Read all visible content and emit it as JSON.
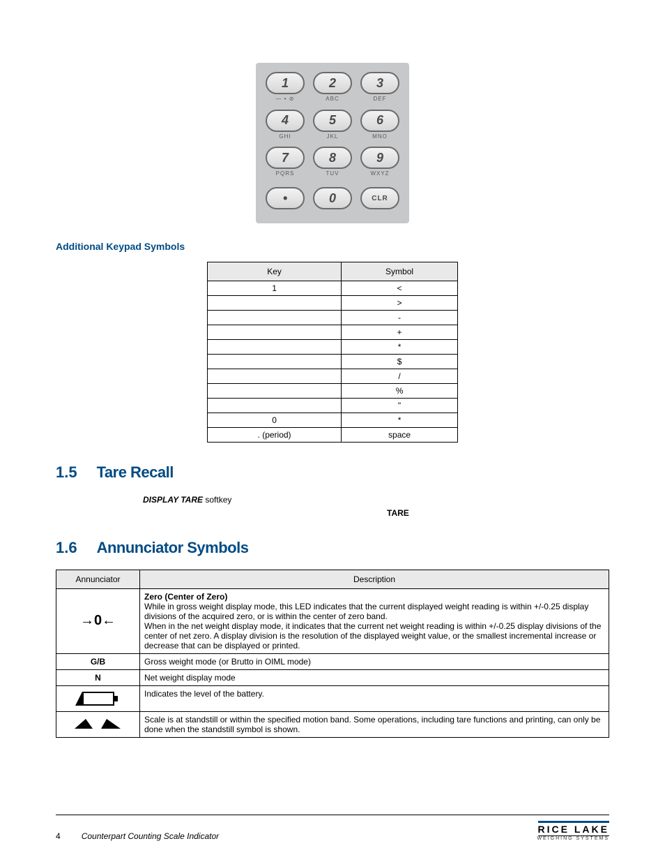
{
  "keypad": {
    "bg_color": "#c7c8c9",
    "keys": [
      {
        "main": "1",
        "sub": "— • ⊘"
      },
      {
        "main": "2",
        "sub": "ABC"
      },
      {
        "main": "3",
        "sub": "DEF"
      },
      {
        "main": "4",
        "sub": "GHI"
      },
      {
        "main": "5",
        "sub": "JKL"
      },
      {
        "main": "6",
        "sub": "MNO"
      },
      {
        "main": "7",
        "sub": "PQRS"
      },
      {
        "main": "8",
        "sub": "TUV"
      },
      {
        "main": "9",
        "sub": "WXYZ"
      },
      {
        "main": "•",
        "sub": ""
      },
      {
        "main": "0",
        "sub": ""
      },
      {
        "main": "CLR",
        "sub": ""
      }
    ]
  },
  "section_sub": "Additional Keypad Symbols",
  "sym_table": {
    "headers": [
      "Key",
      "Symbol"
    ],
    "rows": [
      [
        "1",
        "<"
      ],
      [
        "",
        ">"
      ],
      [
        "",
        "-"
      ],
      [
        "",
        "+"
      ],
      [
        "",
        "*"
      ],
      [
        "",
        "$"
      ],
      [
        "",
        "/"
      ],
      [
        "",
        "%"
      ],
      [
        "",
        "\""
      ],
      [
        "0",
        "*"
      ],
      [
        ". (period)",
        "space"
      ]
    ]
  },
  "sec15": {
    "num": "1.5",
    "title": "Tare Recall",
    "line1_a": "DISPLAY TARE",
    "line1_b": " softkey",
    "line2_a": "TARE"
  },
  "sec16": {
    "num": "1.6",
    "title": "Annunciator Symbols",
    "headers": [
      "Annunciator",
      "Description"
    ],
    "rows": [
      {
        "ann_type": "zero",
        "ann_text": "→0←",
        "desc_title": "Zero (Center of Zero)",
        "desc_body": "While in gross weight display mode, this LED indicates that the current displayed weight reading is within +/-0.25 display divisions of the acquired zero, or is within the center of zero band.\nWhen in the net weight display mode, it indicates that the current net weight reading is within +/-0.25 display divisions of the center of net zero. A display division is the resolution of the displayed weight value, or the smallest incremental increase or decrease that can be displayed or printed."
      },
      {
        "ann_type": "text",
        "ann_text": "G/B",
        "desc_body": "Gross weight mode (or Brutto in OIML mode)"
      },
      {
        "ann_type": "text",
        "ann_text": "N",
        "desc_body": "Net weight display mode"
      },
      {
        "ann_type": "battery",
        "desc_body": "Indicates the level of the battery."
      },
      {
        "ann_type": "standstill",
        "desc_body": "Scale is at standstill or within the specified motion band. Some operations, including tare functions and printing, can only be done when the standstill symbol is shown."
      }
    ]
  },
  "footer": {
    "page": "4",
    "doc": "Counterpart Counting Scale Indicator",
    "brand_top": "RICE LAKE",
    "brand_bot": "WEIGHING SYSTEMS"
  }
}
